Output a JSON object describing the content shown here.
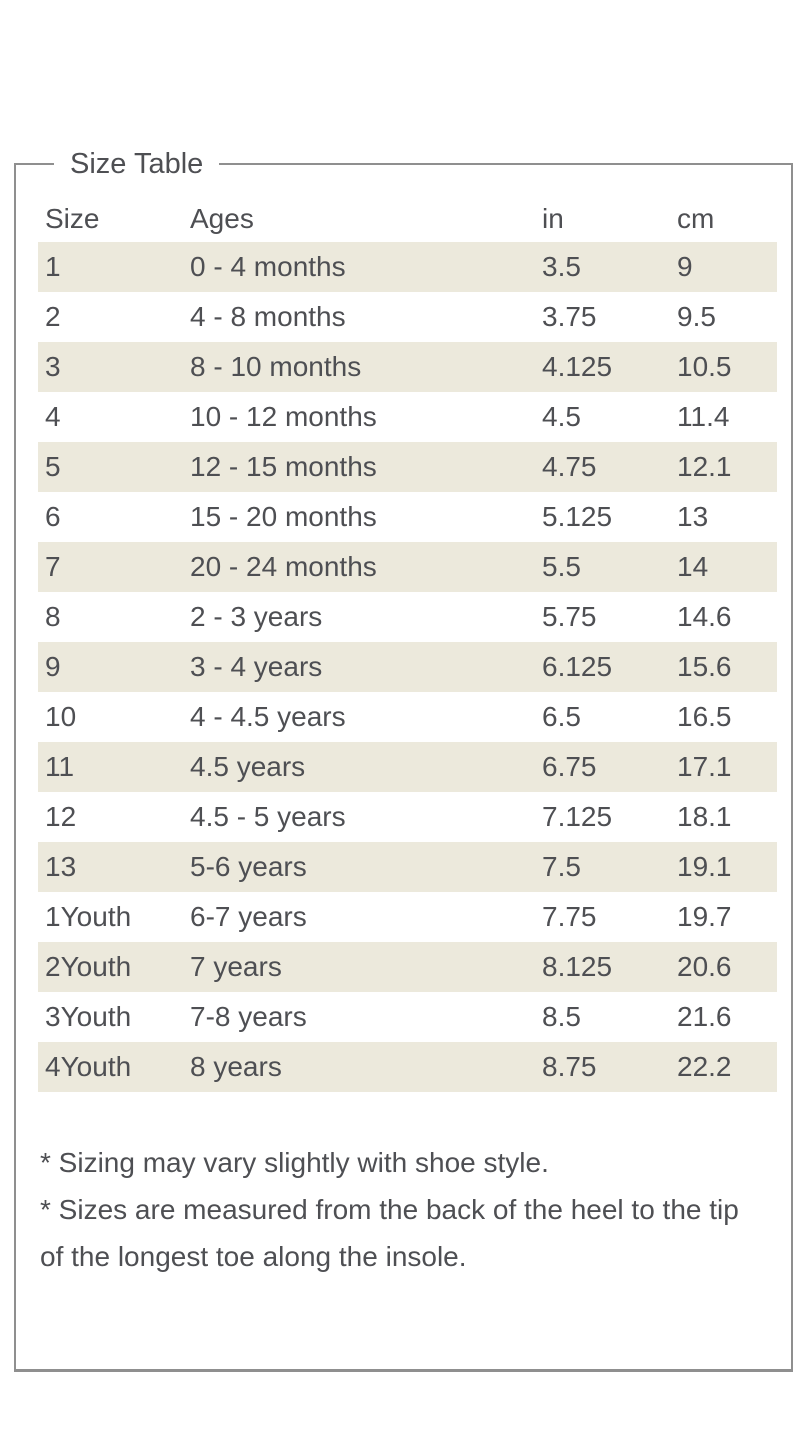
{
  "size_table": {
    "legend": "Size Table",
    "columns": [
      "Size",
      "Ages",
      "in",
      "cm"
    ],
    "rows": [
      [
        "1",
        "0 - 4 months",
        "3.5",
        "9"
      ],
      [
        "2",
        "4 - 8 months",
        "3.75",
        "9.5"
      ],
      [
        "3",
        "8 - 10 months",
        "4.125",
        "10.5"
      ],
      [
        "4",
        "10 - 12 months",
        "4.5",
        "11.4"
      ],
      [
        "5",
        "12 - 15 months",
        "4.75",
        "12.1"
      ],
      [
        "6",
        "15 - 20 months",
        "5.125",
        "13"
      ],
      [
        "7",
        "20 - 24 months",
        "5.5",
        "14"
      ],
      [
        "8",
        "2 - 3 years",
        "5.75",
        "14.6"
      ],
      [
        "9",
        "3 - 4 years",
        "6.125",
        "15.6"
      ],
      [
        "10",
        "4 - 4.5 years",
        "6.5",
        "16.5"
      ],
      [
        "11",
        "4.5 years",
        "6.75",
        "17.1"
      ],
      [
        "12",
        "4.5 - 5 years",
        "7.125",
        "18.1"
      ],
      [
        "13",
        "5-6 years",
        "7.5",
        "19.1"
      ],
      [
        "1Youth",
        "6-7 years",
        "7.75",
        "19.7"
      ],
      [
        "2Youth",
        "7 years",
        "8.125",
        "20.6"
      ],
      [
        "3Youth",
        "7-8 years",
        "8.5",
        "21.6"
      ],
      [
        "4Youth",
        "8 years",
        "8.75",
        "22.2"
      ]
    ],
    "footnotes": [
      "* Sizing may vary slightly with shoe style.",
      "* Sizes are measured from the back of the heel to the tip of the longest toe along the insole."
    ],
    "colors": {
      "stripe": "#ece9dc",
      "text": "#4e4f53",
      "border": "#8f8f8f"
    }
  }
}
